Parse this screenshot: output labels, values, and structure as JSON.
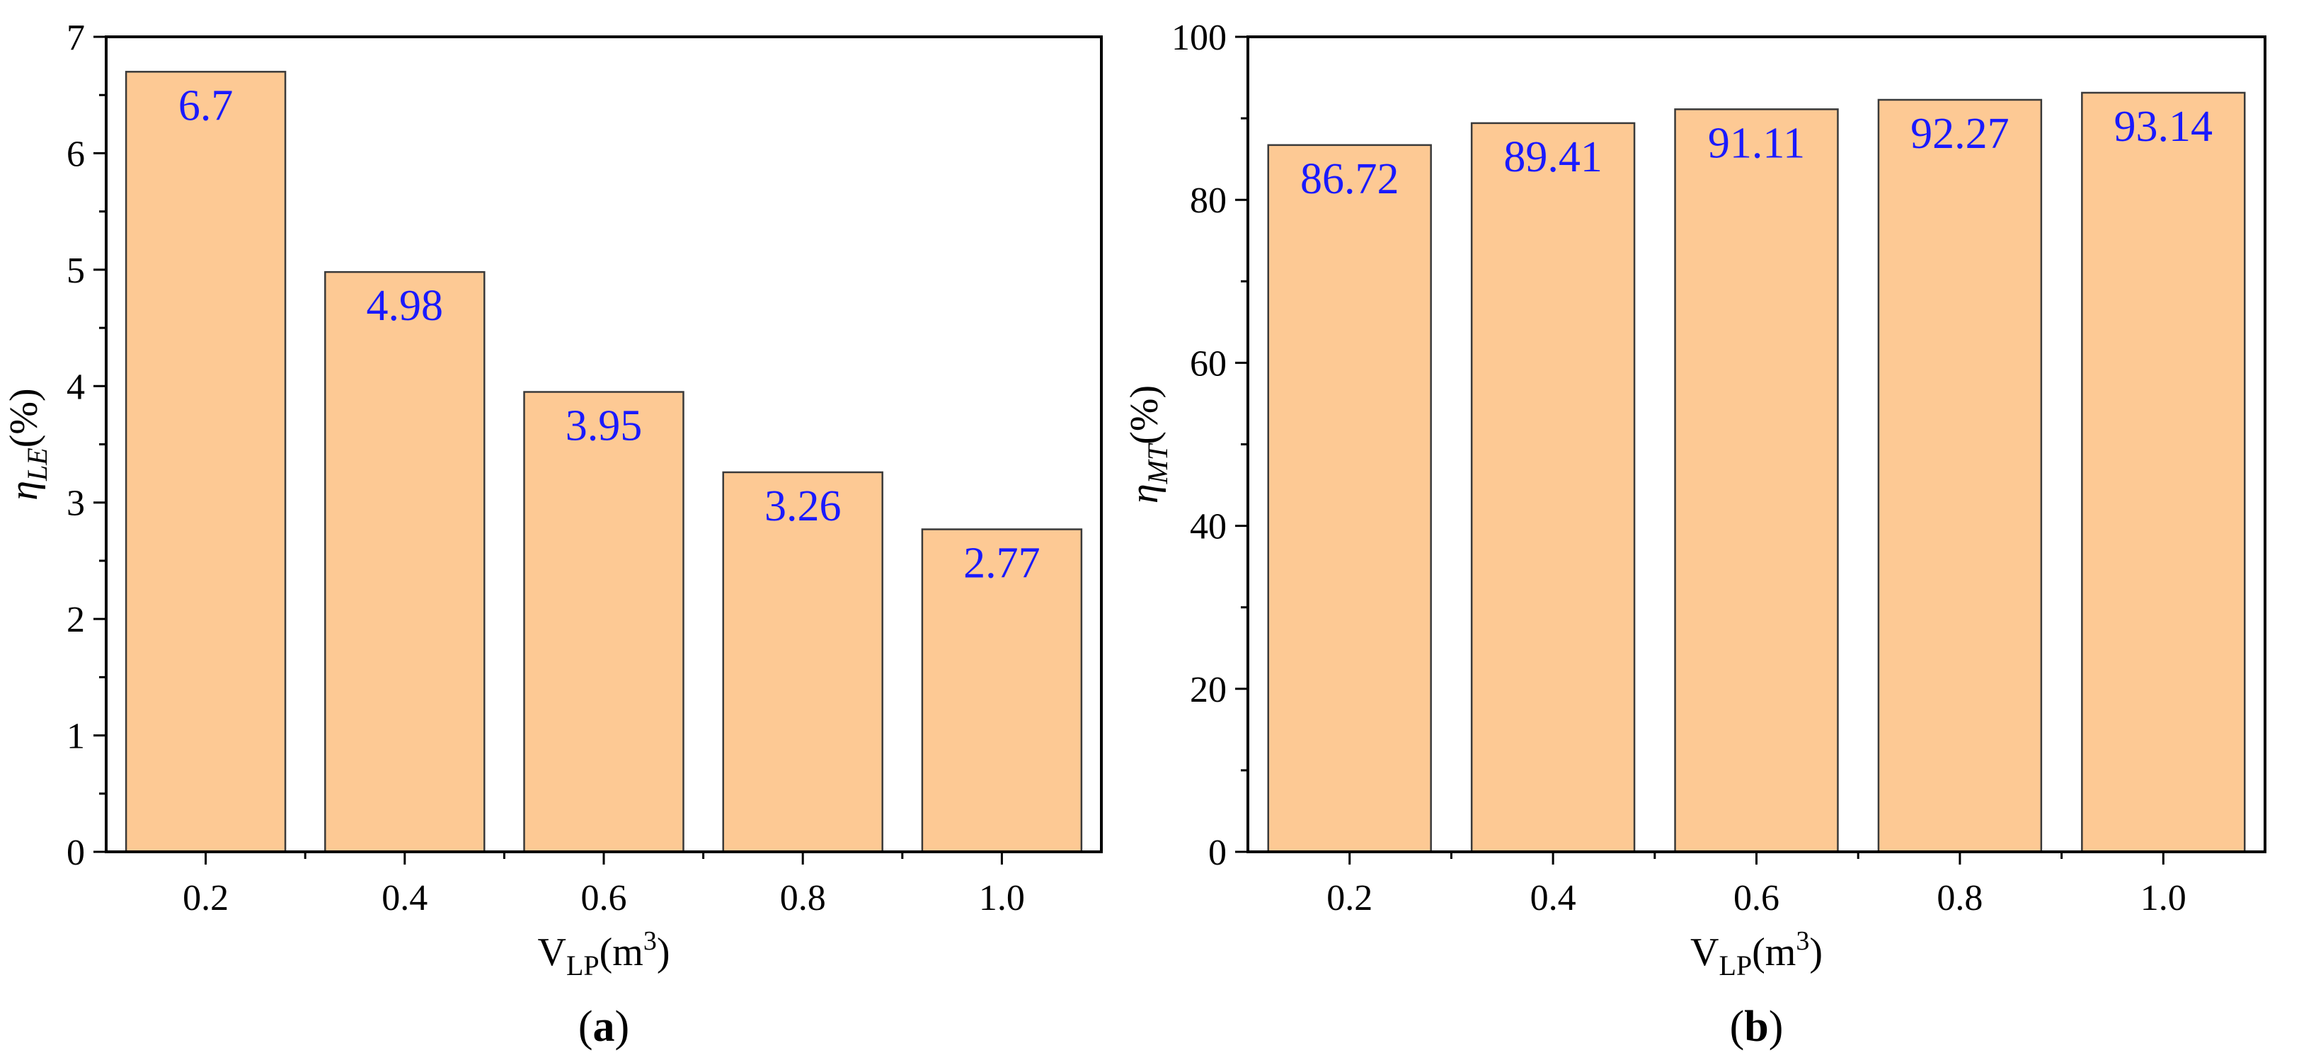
{
  "colors": {
    "bar_fill": "#fdc994",
    "bar_stroke": "#3a3a3a",
    "data_label": "#1a1aff",
    "axis": "#000000"
  },
  "chart_data": [
    {
      "panel": "a",
      "type": "bar",
      "categories": [
        "0.2",
        "0.4",
        "0.6",
        "0.8",
        "1.0"
      ],
      "values": [
        6.7,
        4.98,
        3.95,
        3.26,
        2.77
      ],
      "data_labels": [
        "6.7",
        "4.98",
        "3.95",
        "3.26",
        "2.77"
      ],
      "ylim": [
        0,
        7
      ],
      "yticks": [
        0,
        1,
        2,
        3,
        4,
        5,
        6,
        7
      ],
      "ytick_labels": [
        "0",
        "1",
        "2",
        "3",
        "4",
        "5",
        "6",
        "7"
      ],
      "ylabel_symbol": "η",
      "ylabel_subscript": "LE",
      "ylabel_unit": "(%)",
      "xlabel_main": "V",
      "xlabel_subscript": "LP",
      "xlabel_unit_pre": "(m",
      "xlabel_superscript": "3",
      "xlabel_unit_post": ")",
      "grid": false,
      "panel_open": "(",
      "panel_letter": "a",
      "panel_close": ")"
    },
    {
      "panel": "b",
      "type": "bar",
      "categories": [
        "0.2",
        "0.4",
        "0.6",
        "0.8",
        "1.0"
      ],
      "values": [
        86.72,
        89.41,
        91.11,
        92.27,
        93.14
      ],
      "data_labels": [
        "86.72",
        "89.41",
        "91.11",
        "92.27",
        "93.14"
      ],
      "ylim": [
        0,
        100
      ],
      "yticks": [
        0,
        20,
        40,
        60,
        80,
        100
      ],
      "ytick_labels": [
        "0",
        "20",
        "40",
        "60",
        "80",
        "100"
      ],
      "ylabel_symbol": "η",
      "ylabel_subscript": "MT",
      "ylabel_unit": "(%)",
      "xlabel_main": "V",
      "xlabel_subscript": "LP",
      "xlabel_unit_pre": "(m",
      "xlabel_superscript": "3",
      "xlabel_unit_post": ")",
      "grid": false,
      "panel_open": "(",
      "panel_letter": "b",
      "panel_close": ")"
    }
  ]
}
